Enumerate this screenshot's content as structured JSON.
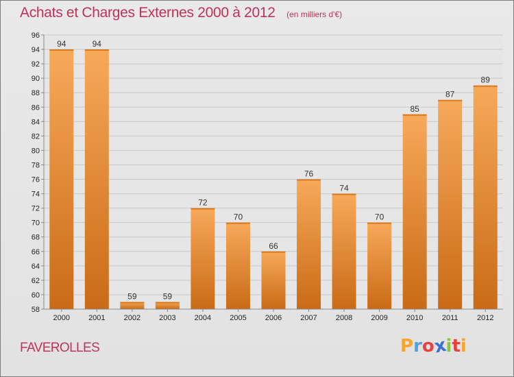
{
  "header": {
    "title": "Achats et Charges Externes 2000 à 2012",
    "subtitle": "(en milliers d'€)"
  },
  "footer": {
    "commune": "FAVEROLLES",
    "logo_letters": [
      "P",
      "r",
      "o",
      "x",
      "i",
      "t",
      "i"
    ],
    "logo_colors": [
      "#f4a52a",
      "#4fa3e0",
      "#e8423f",
      "#3b6fd1",
      "#8cc63f",
      "#e8423f",
      "#f4a52a"
    ]
  },
  "chart_data": {
    "type": "bar",
    "categories": [
      "2000",
      "2001",
      "2002",
      "2003",
      "2004",
      "2005",
      "2006",
      "2007",
      "2008",
      "2009",
      "2010",
      "2011",
      "2012"
    ],
    "values": [
      94,
      94,
      59,
      59,
      72,
      70,
      66,
      76,
      74,
      70,
      85,
      87,
      89
    ],
    "ylim": [
      58,
      96
    ],
    "yticks": [
      "58",
      "60",
      "62",
      "64",
      "66",
      "68",
      "70",
      "72",
      "74",
      "76",
      "78",
      "80",
      "82",
      "84",
      "86",
      "88",
      "90",
      "92",
      "94",
      "96"
    ],
    "grid": true,
    "bar_color": "#f39a3e",
    "bar_color_light": "#f7a95a",
    "bar_color_dark": "#c96b16"
  }
}
